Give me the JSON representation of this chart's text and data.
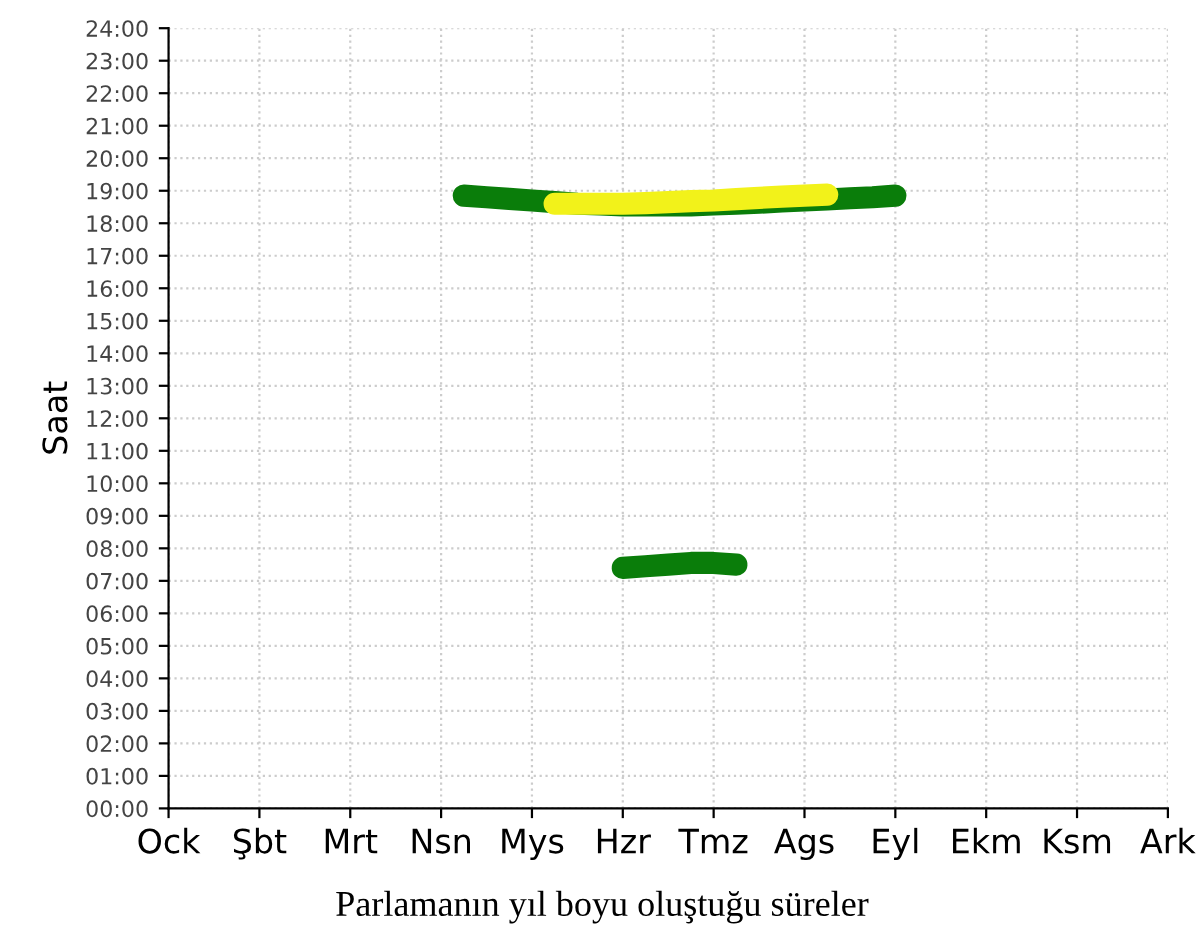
{
  "chart_data": {
    "type": "line",
    "ylabel": "Saat",
    "annotations": [
      "Parlamanın yıl boyu oluştuğu süreler"
    ],
    "grid": true,
    "line_style": "solid",
    "categories": [
      "Ock",
      null,
      null,
      null,
      "Şbt",
      null,
      null,
      null,
      "Mrt",
      null,
      null,
      null,
      "Nsn",
      null,
      null,
      null,
      "Mys",
      null,
      null,
      null,
      "Hzr",
      null,
      null,
      null,
      "Tmz",
      null,
      null,
      null,
      "Ags",
      null,
      null,
      null,
      "Eyl",
      null,
      null,
      null,
      "Ekm",
      null,
      null,
      null,
      "Ksm",
      null,
      null,
      null,
      "Ark"
    ],
    "ylim": [
      0,
      24
    ],
    "yticks": [
      {
        "value": 0,
        "label": "00:00"
      },
      {
        "value": 1,
        "label": "01:00"
      },
      {
        "value": 2,
        "label": "02:00"
      },
      {
        "value": 3,
        "label": "03:00"
      },
      {
        "value": 4,
        "label": "04:00"
      },
      {
        "value": 5,
        "label": "05:00"
      },
      {
        "value": 6,
        "label": "06:00"
      },
      {
        "value": 7,
        "label": "07:00"
      },
      {
        "value": 8,
        "label": "08:00"
      },
      {
        "value": 9,
        "label": "09:00"
      },
      {
        "value": 10,
        "label": "10:00"
      },
      {
        "value": 11,
        "label": "11:00"
      },
      {
        "value": 12,
        "label": "12:00"
      },
      {
        "value": 13,
        "label": "13:00"
      },
      {
        "value": 14,
        "label": "14:00"
      },
      {
        "value": 15,
        "label": "15:00"
      },
      {
        "value": 16,
        "label": "16:00"
      },
      {
        "value": 17,
        "label": "17:00"
      },
      {
        "value": 18,
        "label": "18:00"
      },
      {
        "value": 19,
        "label": "19:00"
      },
      {
        "value": 20,
        "label": "20:00"
      },
      {
        "value": 21,
        "label": "21:00"
      },
      {
        "value": 22,
        "label": "22:00"
      },
      {
        "value": 23,
        "label": "23:00"
      },
      {
        "value": 24,
        "label": "24:00"
      }
    ],
    "series": [
      {
        "color": "#0a7d0a",
        "values": [
          null,
          null,
          null,
          null,
          null,
          null,
          null,
          null,
          null,
          null,
          null,
          null,
          null,
          18.85,
          18.8,
          18.75,
          18.7,
          18.65,
          18.6,
          18.58,
          18.55,
          18.55,
          18.55,
          18.55,
          18.58,
          18.6,
          18.63,
          18.67,
          18.7,
          18.73,
          18.77,
          18.8,
          18.85,
          null,
          null,
          null,
          null,
          null,
          null,
          null,
          null,
          null,
          null,
          null,
          null
        ]
      },
      {
        "color": "#f2f21a",
        "values": [
          null,
          null,
          null,
          null,
          null,
          null,
          null,
          null,
          null,
          null,
          null,
          null,
          null,
          null,
          null,
          null,
          null,
          18.6,
          18.6,
          18.6,
          18.6,
          18.62,
          18.65,
          18.68,
          18.7,
          18.74,
          18.78,
          18.82,
          18.85,
          18.88,
          null,
          null,
          null,
          null,
          null,
          null,
          null,
          null,
          null,
          null,
          null,
          null,
          null,
          null,
          null
        ]
      },
      {
        "color": "#0a7d0a",
        "values": [
          null,
          null,
          null,
          null,
          null,
          null,
          null,
          null,
          null,
          null,
          null,
          null,
          null,
          null,
          null,
          null,
          null,
          null,
          null,
          null,
          7.4,
          7.45,
          7.5,
          7.55,
          7.55,
          7.5,
          null,
          null,
          null,
          null,
          null,
          null,
          null,
          null,
          null,
          null,
          null,
          null,
          null,
          null,
          null,
          null,
          null,
          null,
          null
        ]
      }
    ]
  }
}
